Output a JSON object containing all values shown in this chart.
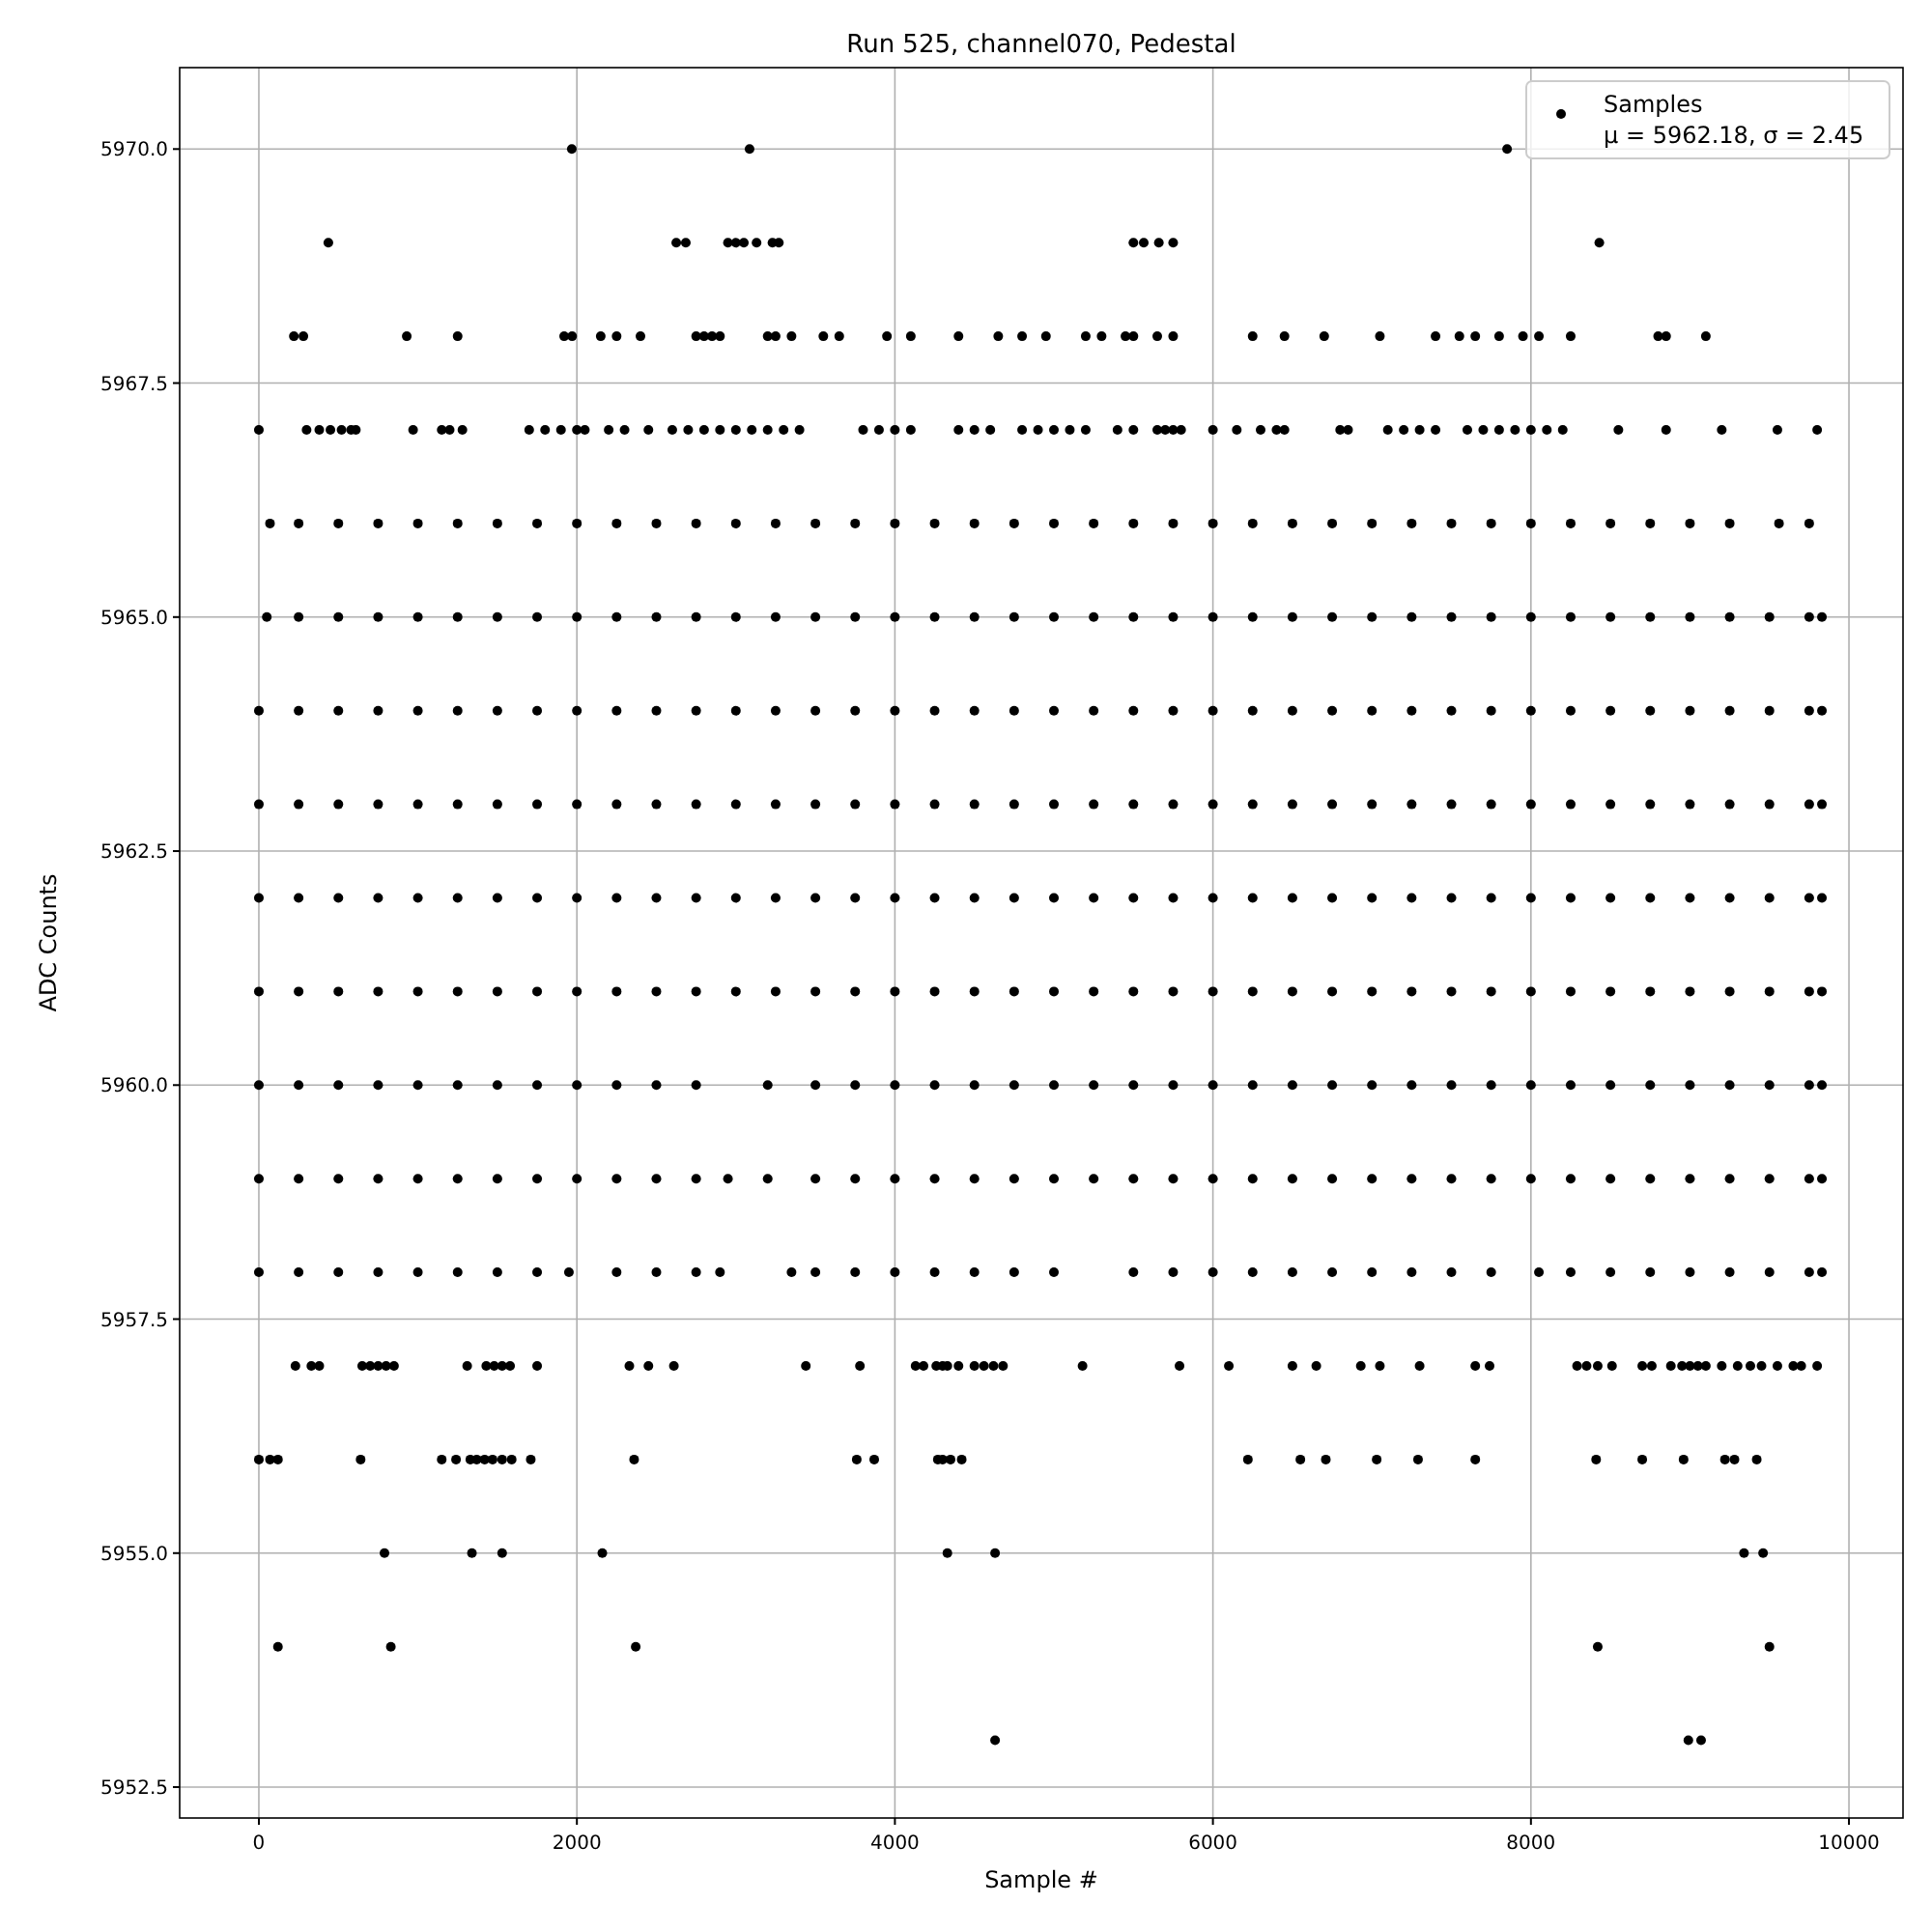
{
  "chart_data": {
    "type": "scatter",
    "title": "Run 525, channel070, Pedestal",
    "xlabel": "Sample #",
    "ylabel": "ADC Counts",
    "xlim": [
      -498,
      10340
    ],
    "ylim": [
      5952.17,
      5970.87
    ],
    "xticks": [
      0,
      2000,
      4000,
      6000,
      8000,
      10000
    ],
    "yticks": [
      {
        "value": 5952.5,
        "label": "5952.5"
      },
      {
        "value": 5955,
        "label": "5955.0"
      },
      {
        "value": 5957.5,
        "label": "5957.5"
      },
      {
        "value": 5960,
        "label": "5960.0"
      },
      {
        "value": 5962.5,
        "label": "5962.5"
      },
      {
        "value": 5965,
        "label": "5965.0"
      },
      {
        "value": 5967.5,
        "label": "5967.5"
      },
      {
        "value": 5970,
        "label": "5970.0"
      }
    ],
    "grid": true,
    "legend": "top right",
    "marker": "circle",
    "series": [
      {
        "name": "Samples\nμ = 5962.18, σ = 2.45",
        "color": "#000000",
        "x": [
          0,
          250,
          500,
          750,
          1000,
          1250,
          1500,
          1750,
          2000,
          2250,
          2500,
          2750,
          3000,
          3250,
          3500,
          3750,
          4000,
          4250,
          4500,
          4750,
          5000,
          5250,
          5500,
          5750,
          6000,
          6250,
          6500,
          6750,
          7000,
          7250,
          7500,
          7750,
          8000,
          8250,
          8500,
          8750,
          9000,
          9250,
          9500,
          9750,
          9830
        ],
        "values": [
          5964,
          5964,
          5964,
          5964,
          5964,
          5964,
          5964,
          5964,
          5964,
          5964,
          5964,
          5964,
          5964,
          5964,
          5964,
          5964,
          5964,
          5964,
          5964,
          5964,
          5964,
          5964,
          5964,
          5964,
          5964,
          5964,
          5964,
          5964,
          5964,
          5964,
          5964,
          5964,
          5964,
          5964,
          5964,
          5964,
          5964,
          5964,
          5964,
          5964,
          5964
        ]
      },
      {
        "color": "#000000",
        "x": [
          0,
          250,
          500,
          750,
          1000,
          1250,
          1500,
          1750,
          2000,
          2250,
          2500,
          2750,
          3000,
          3250,
          3500,
          3750,
          4000,
          4250,
          4500,
          4750,
          5000,
          5250,
          5500,
          5750,
          6000,
          6250,
          6500,
          6750,
          7000,
          7250,
          7500,
          7750,
          8000,
          8250,
          8500,
          8750,
          9000,
          9250,
          9500,
          9750,
          9830
        ],
        "values": [
          5963,
          5963,
          5963,
          5963,
          5963,
          5963,
          5963,
          5963,
          5963,
          5963,
          5963,
          5963,
          5963,
          5963,
          5963,
          5963,
          5963,
          5963,
          5963,
          5963,
          5963,
          5963,
          5963,
          5963,
          5963,
          5963,
          5963,
          5963,
          5963,
          5963,
          5963,
          5963,
          5963,
          5963,
          5963,
          5963,
          5963,
          5963,
          5963,
          5963,
          5963
        ]
      },
      {
        "color": "#000000",
        "x": [
          0,
          250,
          500,
          750,
          1000,
          1250,
          1500,
          1750,
          2000,
          2250,
          2500,
          2750,
          3000,
          3250,
          3500,
          3750,
          4000,
          4250,
          4500,
          4750,
          5000,
          5250,
          5500,
          5750,
          6000,
          6250,
          6500,
          6750,
          7000,
          7250,
          7500,
          7750,
          8000,
          8250,
          8500,
          8750,
          9000,
          9250,
          9500,
          9750,
          9830
        ],
        "values": [
          5962,
          5962,
          5962,
          5962,
          5962,
          5962,
          5962,
          5962,
          5962,
          5962,
          5962,
          5962,
          5962,
          5962,
          5962,
          5962,
          5962,
          5962,
          5962,
          5962,
          5962,
          5962,
          5962,
          5962,
          5962,
          5962,
          5962,
          5962,
          5962,
          5962,
          5962,
          5962,
          5962,
          5962,
          5962,
          5962,
          5962,
          5962,
          5962,
          5962,
          5962
        ]
      },
      {
        "color": "#000000",
        "x": [
          0,
          250,
          500,
          750,
          1000,
          1250,
          1500,
          1750,
          2000,
          2250,
          2500,
          2750,
          3000,
          3250,
          3500,
          3750,
          4000,
          4250,
          4500,
          4750,
          5000,
          5250,
          5500,
          5750,
          6000,
          6250,
          6500,
          6750,
          7000,
          7250,
          7500,
          7750,
          8000,
          8250,
          8500,
          8750,
          9000,
          9250,
          9500,
          9750,
          9830
        ],
        "values": [
          5961,
          5961,
          5961,
          5961,
          5961,
          5961,
          5961,
          5961,
          5961,
          5961,
          5961,
          5961,
          5961,
          5961,
          5961,
          5961,
          5961,
          5961,
          5961,
          5961,
          5961,
          5961,
          5961,
          5961,
          5961,
          5961,
          5961,
          5961,
          5961,
          5961,
          5961,
          5961,
          5961,
          5961,
          5961,
          5961,
          5961,
          5961,
          5961,
          5961,
          5961
        ]
      },
      {
        "color": "#000000",
        "x": [
          0,
          250,
          500,
          750,
          1000,
          1250,
          1500,
          1750,
          2000,
          2250,
          2500,
          2750,
          3200,
          3500,
          3750,
          4000,
          4250,
          4500,
          4750,
          5000,
          5250,
          5500,
          5750,
          6000,
          6250,
          6500,
          6750,
          7000,
          7250,
          7500,
          7750,
          8000,
          8250,
          8500,
          8750,
          9000,
          9250,
          9500,
          9750,
          9830
        ],
        "values": [
          5960,
          5960,
          5960,
          5960,
          5960,
          5960,
          5960,
          5960,
          5960,
          5960,
          5960,
          5960,
          5960,
          5960,
          5960,
          5960,
          5960,
          5960,
          5960,
          5960,
          5960,
          5960,
          5960,
          5960,
          5960,
          5960,
          5960,
          5960,
          5960,
          5960,
          5960,
          5960,
          5960,
          5960,
          5960,
          5960,
          5960,
          5960,
          5960,
          5960
        ]
      },
      {
        "color": "#000000",
        "x": [
          0,
          250,
          500,
          750,
          1000,
          1250,
          1500,
          1750,
          2000,
          2250,
          2500,
          2750,
          2950,
          3200,
          3500,
          3750,
          4000,
          4250,
          4500,
          4750,
          5000,
          5250,
          5500,
          5750,
          6000,
          6250,
          6500,
          6750,
          7000,
          7250,
          7500,
          7750,
          8000,
          8250,
          8500,
          8750,
          9000,
          9250,
          9500,
          9750,
          9830
        ],
        "values": [
          5959,
          5959,
          5959,
          5959,
          5959,
          5959,
          5959,
          5959,
          5959,
          5959,
          5959,
          5959,
          5959,
          5959,
          5959,
          5959,
          5959,
          5959,
          5959,
          5959,
          5959,
          5959,
          5959,
          5959,
          5959,
          5959,
          5959,
          5959,
          5959,
          5959,
          5959,
          5959,
          5959,
          5959,
          5959,
          5959,
          5959,
          5959,
          5959,
          5959,
          5959
        ]
      },
      {
        "color": "#000000",
        "x": [
          0,
          250,
          500,
          750,
          1000,
          1250,
          1500,
          1750,
          1950,
          2250,
          2500,
          2750,
          2900,
          3350,
          3500,
          3750,
          4000,
          4250,
          4500,
          4750,
          5000,
          5500,
          5750,
          6000,
          6250,
          6500,
          6750,
          7000,
          7250,
          7500,
          7750,
          8050,
          8250,
          8500,
          8750,
          9000,
          9250,
          9500,
          9750,
          9830
        ],
        "values": [
          5958,
          5958,
          5958,
          5958,
          5958,
          5958,
          5958,
          5958,
          5958,
          5958,
          5958,
          5958,
          5958,
          5958,
          5958,
          5958,
          5958,
          5958,
          5958,
          5958,
          5958,
          5958,
          5958,
          5958,
          5958,
          5958,
          5958,
          5958,
          5958,
          5958,
          5958,
          5958,
          5958,
          5958,
          5958,
          5958,
          5958,
          5958,
          5958,
          5958
        ]
      },
      {
        "color": "#000000",
        "x": [
          70,
          250,
          500,
          750,
          1000,
          1250,
          1500,
          1750,
          2000,
          2250,
          2500,
          2750,
          3000,
          3250,
          3500,
          3750,
          4000,
          4250,
          4500,
          4750,
          5000,
          5250,
          5500,
          5750,
          6000,
          6250,
          6500,
          6750,
          7000,
          7250,
          7500,
          7750,
          8000,
          8250,
          8500,
          8750,
          9000,
          9250,
          9560,
          9750
        ],
        "values": [
          5966,
          5966,
          5966,
          5966,
          5966,
          5966,
          5966,
          5966,
          5966,
          5966,
          5966,
          5966,
          5966,
          5966,
          5966,
          5966,
          5966,
          5966,
          5966,
          5966,
          5966,
          5966,
          5966,
          5966,
          5966,
          5966,
          5966,
          5966,
          5966,
          5966,
          5966,
          5966,
          5966,
          5966,
          5966,
          5966,
          5966,
          5966,
          5966,
          5966
        ]
      },
      {
        "color": "#000000",
        "x": [
          50,
          250,
          500,
          750,
          1000,
          1250,
          1500,
          1750,
          2000,
          2250,
          2500,
          2750,
          3000,
          3250,
          3500,
          3750,
          4000,
          4250,
          4500,
          4750,
          5000,
          5250,
          5500,
          5750,
          6000,
          6250,
          6500,
          6750,
          7000,
          7250,
          7500,
          7750,
          8000,
          8250,
          8500,
          8750,
          9000,
          9250,
          9500,
          9750,
          9830
        ],
        "values": [
          5965,
          5965,
          5965,
          5965,
          5965,
          5965,
          5965,
          5965,
          5965,
          5965,
          5965,
          5965,
          5965,
          5965,
          5965,
          5965,
          5965,
          5965,
          5965,
          5965,
          5965,
          5965,
          5965,
          5965,
          5965,
          5965,
          5965,
          5965,
          5965,
          5965,
          5965,
          5965,
          5965,
          5965,
          5965,
          5965,
          5965,
          5965,
          5965,
          5965,
          5965
        ]
      },
      {
        "color": "#000000",
        "x": [
          0,
          300,
          380,
          450,
          520,
          580,
          610,
          970,
          1150,
          1200,
          1280,
          1700,
          1800,
          1900,
          2000,
          2050,
          2200,
          2300,
          2450,
          2600,
          2700,
          2800,
          2900,
          3000,
          3100,
          3200,
          3300,
          3400,
          3800,
          3900,
          4000,
          4100,
          4400,
          4500,
          4600,
          4800,
          4900,
          5000,
          5100,
          5200,
          5400,
          5500,
          5650,
          5700,
          5750,
          5800,
          6000,
          6150,
          6300,
          6400,
          6450,
          6800,
          6850,
          7100,
          7200,
          7300,
          7400,
          7600,
          7700,
          7800,
          7900,
          8000,
          8100,
          8200,
          8550,
          8850,
          9200,
          9550,
          9800
        ],
        "values": [
          5967,
          5967,
          5967,
          5967,
          5967,
          5967,
          5967,
          5967,
          5967,
          5967,
          5967,
          5967,
          5967,
          5967,
          5967,
          5967,
          5967,
          5967,
          5967,
          5967,
          5967,
          5967,
          5967,
          5967,
          5967,
          5967,
          5967,
          5967,
          5967,
          5967,
          5967,
          5967,
          5967,
          5967,
          5967,
          5967,
          5967,
          5967,
          5967,
          5967,
          5967,
          5967,
          5967,
          5967,
          5967,
          5967,
          5967,
          5967,
          5967,
          5967,
          5967,
          5967,
          5967,
          5967,
          5967,
          5967,
          5967,
          5967,
          5967,
          5967,
          5967,
          5967,
          5967,
          5967,
          5967,
          5967,
          5967,
          5967,
          5967
        ]
      },
      {
        "color": "#000000",
        "x": [
          220,
          280,
          930,
          1250,
          1920,
          1970,
          2150,
          2250,
          2400,
          2750,
          2800,
          2850,
          2900,
          3200,
          3250,
          3350,
          3550,
          3650,
          3950,
          4100,
          4400,
          4650,
          4800,
          4950,
          5200,
          5300,
          5450,
          5500,
          5650,
          5750,
          6250,
          6450,
          6700,
          7050,
          7400,
          7550,
          7650,
          7800,
          7950,
          8050,
          8250,
          8800,
          8850,
          9100
        ],
        "values": [
          5968,
          5968,
          5968,
          5968,
          5968,
          5968,
          5968,
          5968,
          5968,
          5968,
          5968,
          5968,
          5968,
          5968,
          5968,
          5968,
          5968,
          5968,
          5968,
          5968,
          5968,
          5968,
          5968,
          5968,
          5968,
          5968,
          5968,
          5968,
          5968,
          5968,
          5968,
          5968,
          5968,
          5968,
          5968,
          5968,
          5968,
          5968,
          5968,
          5968,
          5968,
          5968,
          5968,
          5968
        ]
      },
      {
        "color": "#000000",
        "x": [
          437,
          2625,
          2685,
          2950,
          3000,
          3050,
          3130,
          3230,
          3270,
          5500,
          5565,
          5660,
          5750,
          8430
        ],
        "values": [
          5969,
          5969,
          5969,
          5969,
          5969,
          5969,
          5969,
          5969,
          5969,
          5969,
          5969,
          5969,
          5969,
          5969
        ]
      },
      {
        "color": "#000000",
        "x": [
          1968,
          3086,
          7850
        ],
        "values": [
          5970,
          5970,
          5970
        ]
      },
      {
        "color": "#000000",
        "x": [
          230,
          330,
          380,
          650,
          700,
          750,
          800,
          850,
          1310,
          1430,
          1480,
          1530,
          1580,
          1750,
          2330,
          2450,
          2610,
          3440,
          3780,
          4130,
          4180,
          4260,
          4300,
          4330,
          4400,
          4500,
          4560,
          4620,
          4680,
          5180,
          5790,
          6100,
          6500,
          6650,
          6930,
          7050,
          7300,
          7650,
          7740,
          8290,
          8350,
          8420,
          8510,
          8700,
          8760,
          8880,
          8950,
          9000,
          9050,
          9100,
          9200,
          9300,
          9380,
          9450,
          9550,
          9650,
          9700,
          9800
        ],
        "values": [
          5957,
          5957,
          5957,
          5957,
          5957,
          5957,
          5957,
          5957,
          5957,
          5957,
          5957,
          5957,
          5957,
          5957,
          5957,
          5957,
          5957,
          5957,
          5957,
          5957,
          5957,
          5957,
          5957,
          5957,
          5957,
          5957,
          5957,
          5957,
          5957,
          5957,
          5957,
          5957,
          5957,
          5957,
          5957,
          5957,
          5957,
          5957,
          5957,
          5957,
          5957,
          5957,
          5957,
          5957,
          5957,
          5957,
          5957,
          5957,
          5957,
          5957,
          5957,
          5957,
          5957,
          5957,
          5957,
          5957,
          5957,
          5957
        ]
      },
      {
        "color": "#000000",
        "x": [
          0,
          70,
          120,
          640,
          1150,
          1240,
          1330,
          1370,
          1420,
          1470,
          1530,
          1590,
          1710,
          2360,
          3760,
          3870,
          4270,
          4300,
          4350,
          4420,
          6220,
          6550,
          6710,
          7030,
          7290,
          7650,
          8410,
          8700,
          8960,
          9220,
          9280,
          9420
        ],
        "values": [
          5956,
          5956,
          5956,
          5956,
          5956,
          5956,
          5956,
          5956,
          5956,
          5956,
          5956,
          5956,
          5956,
          5956,
          5956,
          5956,
          5956,
          5956,
          5956,
          5956,
          5956,
          5956,
          5956,
          5956,
          5956,
          5956,
          5956,
          5956,
          5956,
          5956,
          5956,
          5956
        ]
      },
      {
        "color": "#000000",
        "x": [
          790,
          1340,
          1530,
          2160,
          4330,
          4630,
          9340,
          9460
        ],
        "values": [
          5955,
          5955,
          5955,
          5955,
          5955,
          5955,
          5955,
          5955
        ]
      },
      {
        "color": "#000000",
        "x": [
          120,
          830,
          2370,
          8420,
          9500
        ],
        "values": [
          5954,
          5954,
          5954,
          5954,
          5954
        ]
      },
      {
        "color": "#000000",
        "x": [
          4630,
          8990,
          9070
        ],
        "values": [
          5953,
          5953,
          5953
        ]
      }
    ]
  }
}
